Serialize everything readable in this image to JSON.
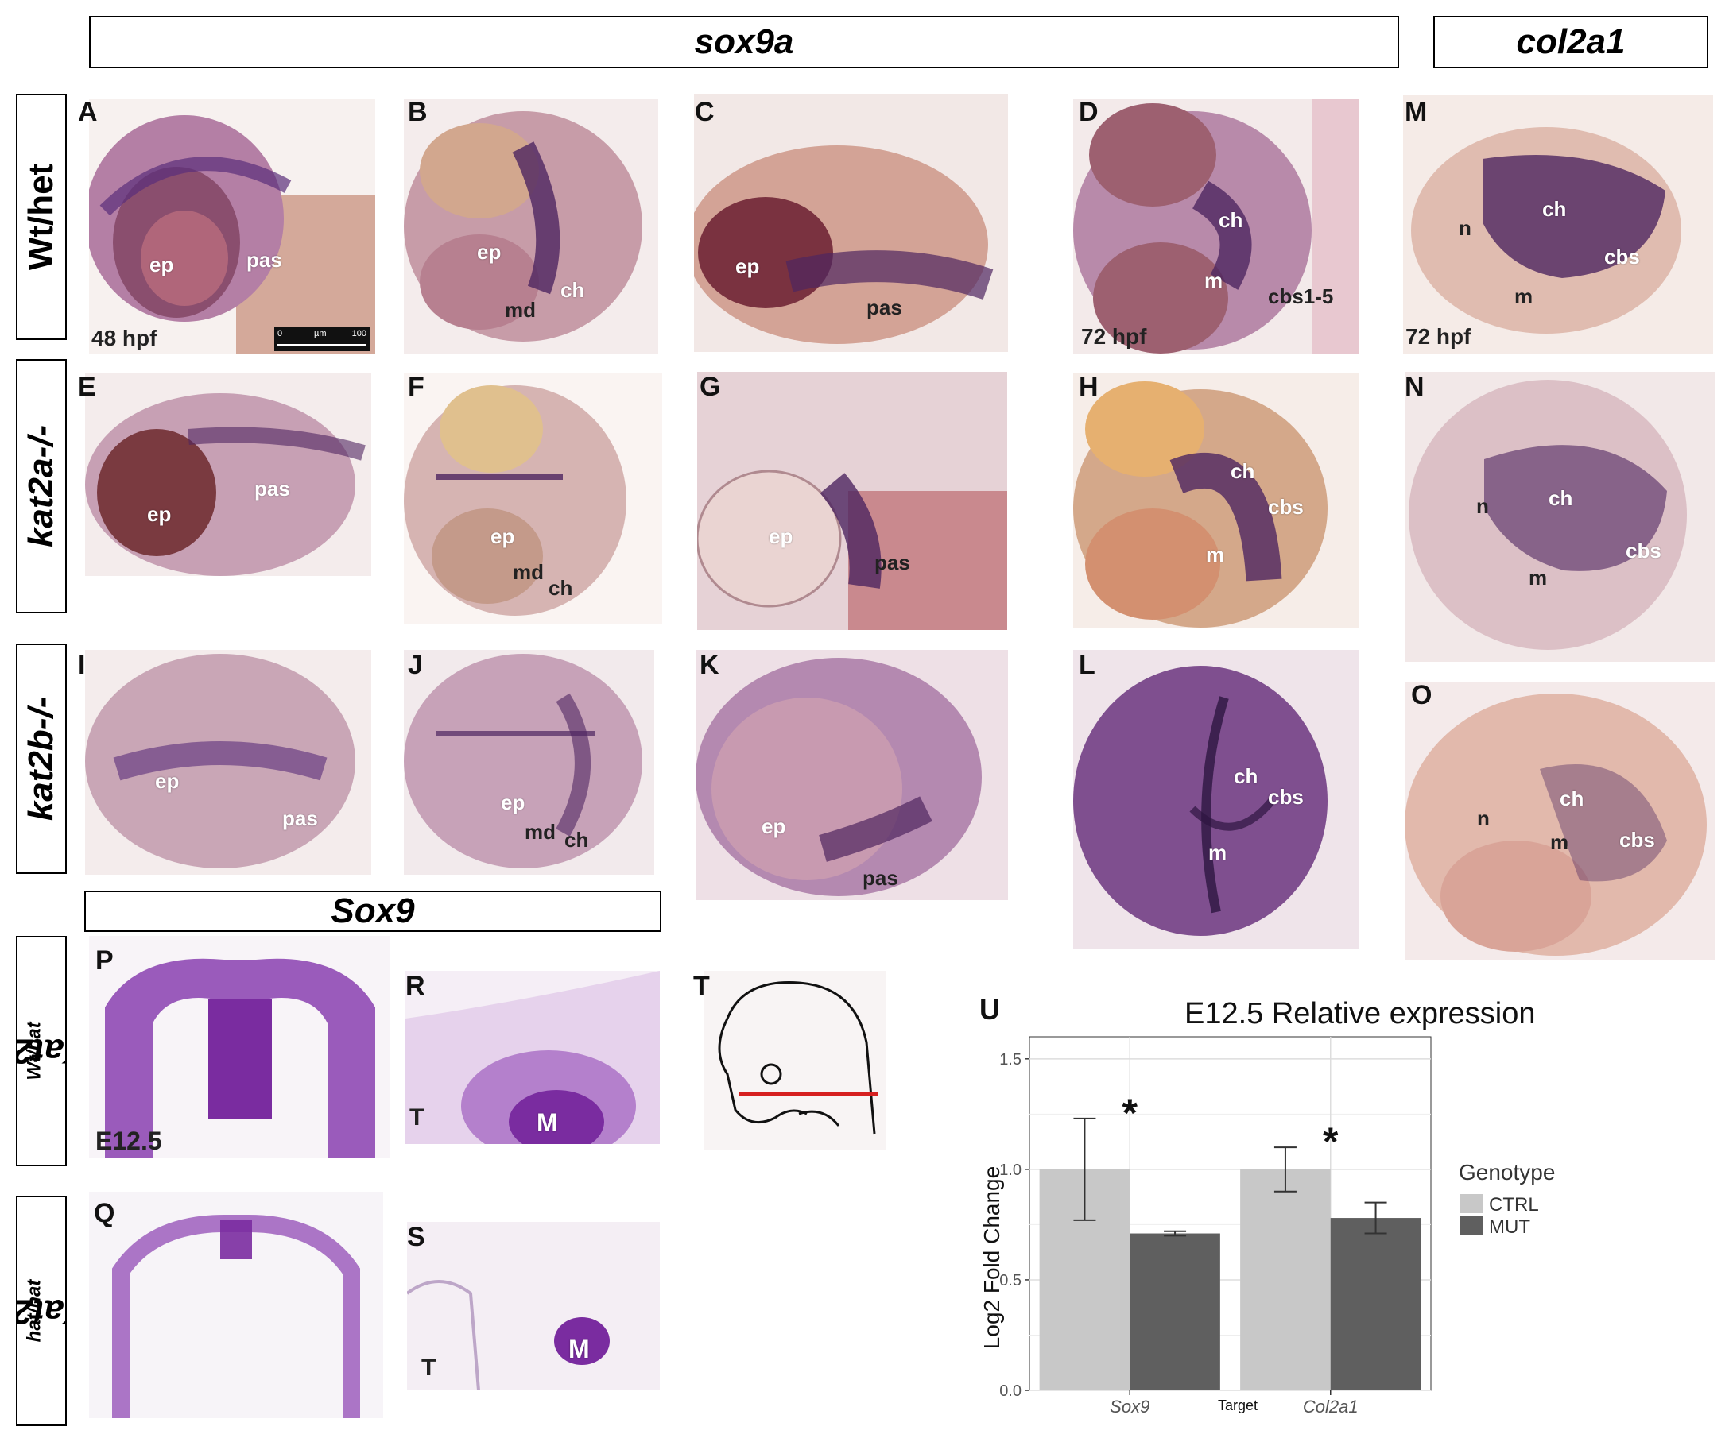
{
  "headers": {
    "sox9a": "sox9a",
    "col2a1": "col2a1",
    "sox9": "Sox9"
  },
  "rows": {
    "wt_het": "Wt/het",
    "kat2a": "kat2a-/-",
    "kat2b": "kat2b-/-",
    "kat2a_wt_base": "Kat2a",
    "kat2a_wt_sup": "Wt/hat",
    "kat2a_hat_base": "Kat2a",
    "kat2a_hat_sup": "hat/hat"
  },
  "panel_letters": [
    "A",
    "B",
    "C",
    "D",
    "M",
    "E",
    "F",
    "G",
    "H",
    "N",
    "I",
    "J",
    "K",
    "L",
    "O",
    "P",
    "R",
    "T",
    "Q",
    "S",
    "U"
  ],
  "stages": {
    "a": "48 hpf",
    "d": "72 hpf",
    "m": "72 hpf",
    "p": "E12.5"
  },
  "scale_bar": {
    "start": "0",
    "unit": "µm",
    "end": "100"
  },
  "labels": {
    "ep": "ep",
    "pas": "pas",
    "md": "md",
    "ch": "ch",
    "m": "m",
    "cbs": "cbs",
    "cbs15": "cbs1-5",
    "n": "n",
    "T": "T",
    "M": "M"
  },
  "colors": {
    "stain": "#5a2d7a",
    "ctrl": "#c8c8c8",
    "mut": "#5f5f5f",
    "section_stain": "#8a3fb0",
    "marker_line": "#d62020"
  },
  "chart_data": {
    "type": "bar",
    "title": "E12.5 Relative expression",
    "xlabel": "Target",
    "ylabel": "Log2 Fold Change",
    "categories": [
      "Sox9",
      "Col2a1"
    ],
    "series": [
      {
        "name": "CTRL",
        "values": [
          1.0,
          1.0
        ],
        "err_low": [
          0.77,
          0.9
        ],
        "err_high": [
          1.23,
          1.1
        ]
      },
      {
        "name": "MUT",
        "values": [
          0.71,
          0.78
        ],
        "err_low": [
          0.7,
          0.71
        ],
        "err_high": [
          0.72,
          0.85
        ]
      }
    ],
    "ylim": [
      0,
      1.6
    ],
    "yticks": [
      "0.0",
      "0.5",
      "1.0",
      "1.5"
    ],
    "legend_title": "Genotype",
    "legend_position": "right",
    "annotations": [
      "*",
      "*"
    ],
    "grid": true
  }
}
